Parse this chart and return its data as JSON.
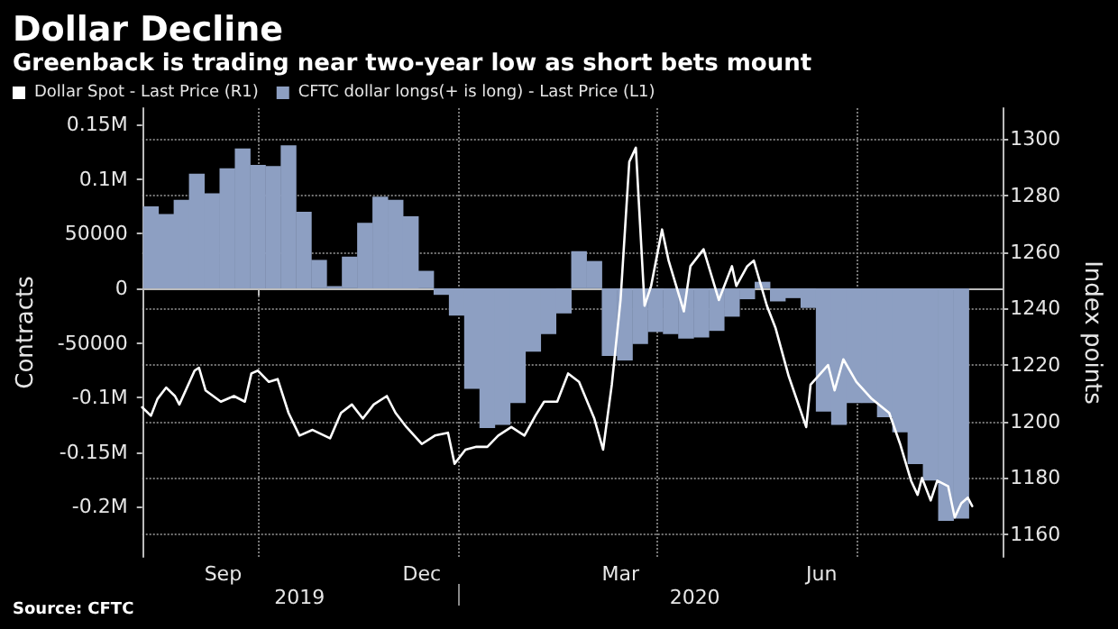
{
  "chart_data": {
    "type": "bar",
    "title": "Dollar Decline",
    "subtitle": "Greenback is trading near two-year low as short bets mount",
    "ylabel": "Contracts",
    "y2label": "Index points",
    "legend": "top left",
    "grid": true,
    "x": [
      "2019-08-13",
      "2019-08-20",
      "2019-08-27",
      "2019-09-03",
      "2019-09-10",
      "2019-09-17",
      "2019-09-24",
      "2019-10-01",
      "2019-10-08",
      "2019-10-15",
      "2019-10-22",
      "2019-10-29",
      "2019-11-05",
      "2019-11-12",
      "2019-11-19",
      "2019-11-26",
      "2019-12-03",
      "2019-12-10",
      "2019-12-17",
      "2019-12-24",
      "2019-12-31",
      "2020-01-07",
      "2020-01-14",
      "2020-01-21",
      "2020-01-28",
      "2020-02-04",
      "2020-02-11",
      "2020-02-18",
      "2020-02-25",
      "2020-03-03",
      "2020-03-10",
      "2020-03-17",
      "2020-03-24",
      "2020-03-31",
      "2020-04-07",
      "2020-04-14",
      "2020-04-21",
      "2020-04-28",
      "2020-05-05",
      "2020-05-12",
      "2020-05-19",
      "2020-05-26",
      "2020-06-02",
      "2020-06-09",
      "2020-06-16",
      "2020-06-23",
      "2020-06-30",
      "2020-07-07",
      "2020-07-14",
      "2020-07-21",
      "2020-07-28",
      "2020-08-04",
      "2020-08-11",
      "2020-08-18"
    ],
    "series": [
      {
        "type": "line",
        "name": "Dollar Spot - Last Price (R1)",
        "color": "#ffffff",
        "axis": "y2",
        "x": [
          "2019-08-09",
          "2019-08-13",
          "2019-08-16",
          "2019-08-20",
          "2019-08-24",
          "2019-08-26",
          "2019-09-02",
          "2019-09-04",
          "2019-09-07",
          "2019-09-14",
          "2019-09-20",
          "2019-09-25",
          "2019-09-28",
          "2019-10-01",
          "2019-10-06",
          "2019-10-10",
          "2019-10-15",
          "2019-10-20",
          "2019-10-26",
          "2019-11-03",
          "2019-11-08",
          "2019-11-13",
          "2019-11-18",
          "2019-11-23",
          "2019-11-29",
          "2019-12-03",
          "2019-12-08",
          "2019-12-15",
          "2019-12-21",
          "2019-12-27",
          "2019-12-30",
          "2020-01-04",
          "2020-01-09",
          "2020-01-14",
          "2020-01-19",
          "2020-01-25",
          "2020-01-31",
          "2020-02-05",
          "2020-02-09",
          "2020-02-15",
          "2020-02-20",
          "2020-02-25",
          "2020-03-03",
          "2020-03-07",
          "2020-03-11",
          "2020-03-15",
          "2020-03-19",
          "2020-03-22",
          "2020-03-26",
          "2020-03-29",
          "2020-04-03",
          "2020-04-06",
          "2020-04-13",
          "2020-04-16",
          "2020-04-22",
          "2020-04-29",
          "2020-05-05",
          "2020-05-07",
          "2020-05-12",
          "2020-05-15",
          "2020-05-21",
          "2020-05-25",
          "2020-05-31",
          "2020-06-08",
          "2020-06-10",
          "2020-06-18",
          "2020-06-21",
          "2020-06-25",
          "2020-07-01",
          "2020-07-08",
          "2020-07-16",
          "2020-07-21",
          "2020-07-26",
          "2020-07-29",
          "2020-07-31",
          "2020-08-04",
          "2020-08-07",
          "2020-08-12",
          "2020-08-15",
          "2020-08-18",
          "2020-08-21",
          "2020-08-23"
        ],
        "values": [
          1205,
          1202,
          1208,
          1212,
          1209,
          1206,
          1218,
          1219,
          1211,
          1207,
          1209,
          1207,
          1217,
          1218,
          1214,
          1215,
          1203,
          1195,
          1197,
          1194,
          1203,
          1206,
          1201,
          1206,
          1209,
          1203,
          1198,
          1192,
          1195,
          1196,
          1185,
          1190,
          1191,
          1191,
          1195,
          1198,
          1195,
          1202,
          1207,
          1207,
          1217,
          1214,
          1201,
          1190,
          1213,
          1243,
          1292,
          1297,
          1241,
          1248,
          1268,
          1257,
          1239,
          1255,
          1261,
          1243,
          1255,
          1248,
          1255,
          1257,
          1241,
          1233,
          1216,
          1198,
          1213,
          1220,
          1211,
          1222,
          1214,
          1208,
          1203,
          1192,
          1179,
          1174,
          1180,
          1172,
          1179,
          1177,
          1166,
          1171,
          1173,
          1170
        ]
      },
      {
        "name": "CFTC dollar longs(+ is long) - Last Price (L1)",
        "color": "#8d9fc2",
        "values": [
          75000,
          68000,
          81000,
          105000,
          87000,
          110000,
          128000,
          113000,
          112000,
          131000,
          70000,
          26000,
          2000,
          29000,
          60000,
          84000,
          81000,
          66000,
          16000,
          -6000,
          -25000,
          -92000,
          -128000,
          -125000,
          -105000,
          -58000,
          -42000,
          -23000,
          34000,
          25000,
          -62000,
          -66000,
          -51000,
          -40000,
          -42000,
          -46000,
          -45000,
          -39000,
          -26000,
          -10000,
          6000,
          -12000,
          -9000,
          -18000,
          -113000,
          -125000,
          -105000,
          -105000,
          -118000,
          -132000,
          -161000,
          -176000,
          -213000,
          -211000
        ]
      }
    ],
    "xlim": [
      "2019-08-09",
      "2020-09-06"
    ],
    "xticks": [
      {
        "value": "2019-09-15",
        "label": "Sep"
      },
      {
        "value": "2019-10-01",
        "label": null
      },
      {
        "value": "2019-12-15",
        "label": "Dec"
      },
      {
        "value": "2020-01-01",
        "label": null
      },
      {
        "value": "2020-03-15",
        "label": "Mar"
      },
      {
        "value": "2020-04-01",
        "label": null
      },
      {
        "value": "2020-06-15",
        "label": "Jun"
      },
      {
        "value": "2020-07-01",
        "label": null
      }
    ],
    "x2lim": [
      "2019-08-09",
      "2020-09-06"
    ],
    "x2ticks": [
      {
        "value": "2019-10-20",
        "label": "2019"
      },
      {
        "value": "2020-01-01",
        "label": null
      },
      {
        "value": "2020-04-18",
        "label": "2020"
      }
    ],
    "ylim": [
      -246000,
      165000
    ],
    "yticks": [
      {
        "value": 150000,
        "label": "0.15M"
      },
      {
        "value": 100000,
        "label": "0.1M"
      },
      50000,
      0,
      -50000,
      {
        "value": -100000,
        "label": "-0.1M"
      },
      {
        "value": -150000,
        "label": "-0.15M"
      },
      {
        "value": -200000,
        "label": "-0.2M"
      }
    ],
    "y2lim": [
      1152,
      1311
    ],
    "y2ticks": [
      1160,
      1180,
      1200,
      1220,
      1240,
      1260,
      1280,
      1300
    ],
    "annotations": [
      "Source: CFTC"
    ]
  }
}
